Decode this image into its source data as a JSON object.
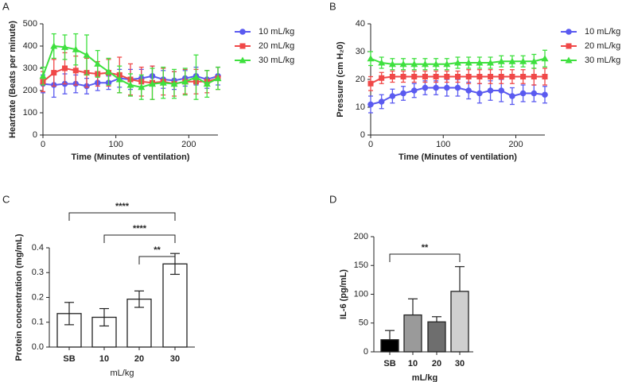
{
  "chart_data": [
    {
      "type": "line",
      "panel": "A",
      "x_label": "Time (Minutes of ventilation)",
      "y_label": "Heartrate (Beats per minute)",
      "x": [
        0,
        15,
        30,
        45,
        60,
        75,
        90,
        105,
        120,
        135,
        150,
        165,
        180,
        195,
        210,
        225,
        240
      ],
      "xlim": [
        0,
        240
      ],
      "xticks": [
        0,
        100,
        200
      ],
      "ylim": [
        0,
        500
      ],
      "yticks": [
        0,
        100,
        200,
        300,
        400,
        500
      ],
      "legend": "right",
      "series": [
        {
          "name": "10 mL/kg",
          "color": "#5a5af0",
          "marker": "circle",
          "values": [
            230,
            225,
            230,
            230,
            220,
            235,
            235,
            255,
            250,
            255,
            265,
            250,
            245,
            255,
            265,
            250,
            265
          ],
          "errors": [
            40,
            55,
            45,
            40,
            35,
            35,
            30,
            40,
            45,
            40,
            45,
            40,
            40,
            35,
            40,
            40,
            40
          ]
        },
        {
          "name": "20 mL/kg",
          "color": "#f04848",
          "marker": "square",
          "values": [
            240,
            280,
            300,
            290,
            280,
            275,
            280,
            270,
            250,
            240,
            235,
            240,
            230,
            240,
            240,
            240,
            255
          ],
          "errors": [
            45,
            60,
            70,
            65,
            65,
            55,
            60,
            80,
            70,
            65,
            75,
            60,
            55,
            55,
            55,
            50,
            50
          ]
        },
        {
          "name": "30 mL/kg",
          "color": "#3ee03e",
          "marker": "triangle",
          "values": [
            265,
            400,
            395,
            385,
            360,
            320,
            285,
            250,
            225,
            215,
            230,
            235,
            230,
            240,
            260,
            230,
            255
          ],
          "errors": [
            40,
            55,
            55,
            70,
            90,
            60,
            60,
            60,
            50,
            55,
            70,
            70,
            65,
            60,
            100,
            60,
            50
          ]
        }
      ]
    },
    {
      "type": "line",
      "panel": "B",
      "x_label": "Time (Minutes of ventilation)",
      "y_label": "Pressure (cm H₂0)",
      "x": [
        0,
        15,
        30,
        45,
        60,
        75,
        90,
        105,
        120,
        135,
        150,
        165,
        180,
        195,
        210,
        225,
        240
      ],
      "xlim": [
        0,
        240
      ],
      "xticks": [
        0,
        100,
        200
      ],
      "ylim": [
        0,
        40
      ],
      "yticks": [
        0,
        10,
        20,
        30,
        40
      ],
      "legend": "right",
      "series": [
        {
          "name": "10 mL/kg",
          "color": "#5a5af0",
          "marker": "circle",
          "values": [
            11,
            12,
            14,
            15,
            16,
            17,
            17,
            17,
            17,
            16,
            15,
            16,
            16,
            14,
            15,
            15,
            14.5
          ],
          "errors": [
            3,
            2.5,
            2.5,
            2.5,
            2.5,
            2.5,
            2.5,
            3,
            3,
            3,
            3.5,
            3.5,
            4,
            3,
            3,
            3,
            3
          ]
        },
        {
          "name": "20 mL/kg",
          "color": "#f04848",
          "marker": "square",
          "values": [
            18.5,
            20.5,
            21,
            21,
            21,
            21,
            21,
            21,
            21,
            21,
            21,
            21,
            21,
            21,
            21,
            21,
            21
          ],
          "errors": [
            2.5,
            2,
            2,
            2,
            2,
            2,
            2,
            2,
            2,
            2.5,
            2.5,
            2.5,
            2.5,
            2.5,
            2.5,
            3,
            3
          ]
        },
        {
          "name": "30 mL/kg",
          "color": "#3ee03e",
          "marker": "triangle",
          "values": [
            27.5,
            26,
            25.5,
            25.5,
            25.5,
            25.5,
            25.5,
            25.5,
            26,
            26,
            26,
            26,
            26.5,
            26.5,
            26.5,
            26.5,
            27.5
          ],
          "errors": [
            2.5,
            2,
            2,
            2,
            2,
            2,
            2,
            2,
            2,
            2,
            2,
            2,
            2,
            2,
            2,
            2.5,
            3
          ]
        }
      ]
    },
    {
      "type": "bar",
      "panel": "C",
      "x_label": "mL/kg",
      "y_label": "Protein concentration (mg/mL)",
      "categories": [
        "SB",
        "10",
        "20",
        "30"
      ],
      "values": [
        0.135,
        0.12,
        0.193,
        0.335
      ],
      "errors": [
        0.045,
        0.035,
        0.033,
        0.042
      ],
      "colors": [
        "#ffffff",
        "#ffffff",
        "#ffffff",
        "#ffffff"
      ],
      "error_direction": "both",
      "ylim": [
        0,
        0.4
      ],
      "yticks": [
        {
          "value": 0,
          "label": "0.0"
        },
        0.1,
        0.2,
        0.3,
        0.4
      ],
      "annotations": [
        "****",
        "****",
        "**"
      ]
    },
    {
      "type": "bar",
      "panel": "D",
      "x_label": "mL/kg",
      "y_label": "IL-6 (pg/mL)",
      "categories": [
        "SB",
        "10",
        "20",
        "30"
      ],
      "values": [
        21,
        64,
        52,
        105
      ],
      "errors": [
        16,
        28,
        9,
        43
      ],
      "colors": [
        "#000000",
        "#9a9a9a",
        "#6e6e6e",
        "#cfcfcf"
      ],
      "error_direction": "up",
      "ylim": [
        0,
        200
      ],
      "yticks": [
        0,
        50,
        100,
        150,
        200
      ],
      "annotations": [
        "**"
      ]
    }
  ]
}
